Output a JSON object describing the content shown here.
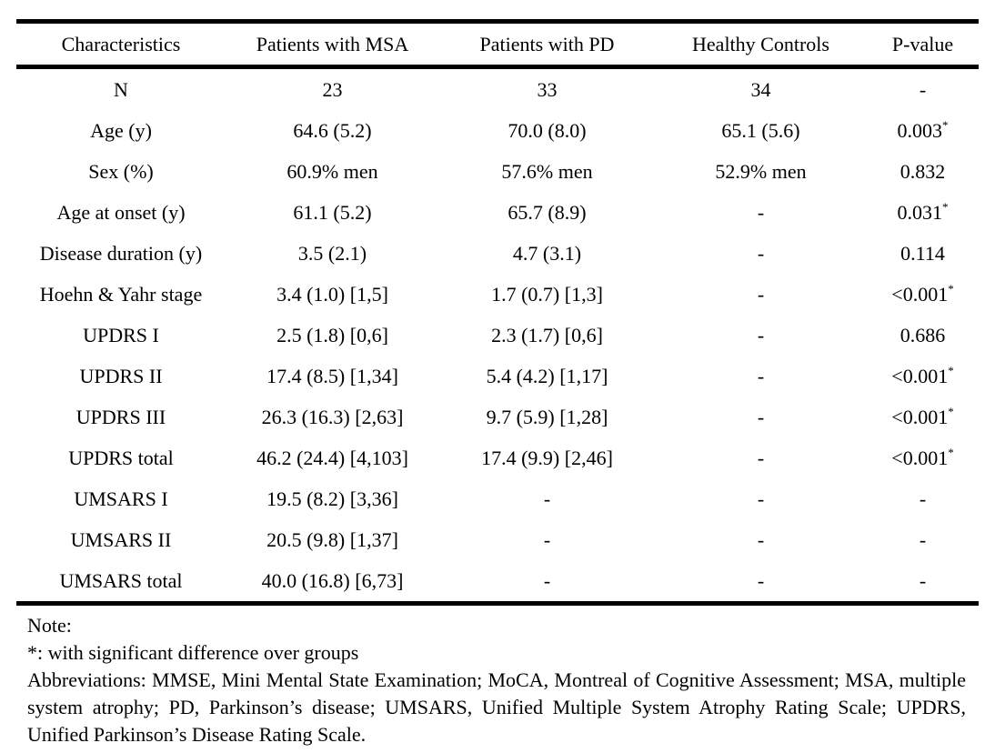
{
  "table": {
    "headers": [
      "Characteristics",
      "Patients with MSA",
      "Patients with PD",
      "Healthy Controls",
      "P-value"
    ],
    "rows": [
      {
        "label": "N",
        "msa": "23",
        "pd": "33",
        "hc": "34",
        "p": "-",
        "sig": ""
      },
      {
        "label": "Age (y)",
        "msa": "64.6 (5.2)",
        "pd": "70.0 (8.0)",
        "hc": "65.1 (5.6)",
        "p": "0.003",
        "sig": "*"
      },
      {
        "label": "Sex (%)",
        "msa": "60.9% men",
        "pd": "57.6% men",
        "hc": "52.9% men",
        "p": "0.832",
        "sig": ""
      },
      {
        "label": "Age at onset (y)",
        "msa": "61.1 (5.2)",
        "pd": "65.7 (8.9)",
        "hc": "-",
        "p": "0.031",
        "sig": "*"
      },
      {
        "label": "Disease duration (y)",
        "msa": "3.5 (2.1)",
        "pd": "4.7 (3.1)",
        "hc": "-",
        "p": "0.114",
        "sig": ""
      },
      {
        "label": "Hoehn & Yahr stage",
        "msa": "3.4 (1.0) [1,5]",
        "pd": "1.7 (0.7) [1,3]",
        "hc": "-",
        "p": "<0.001",
        "sig": "*"
      },
      {
        "label": "UPDRS I",
        "msa": "2.5 (1.8) [0,6]",
        "pd": "2.3 (1.7) [0,6]",
        "hc": "-",
        "p": "0.686",
        "sig": ""
      },
      {
        "label": "UPDRS II",
        "msa": "17.4 (8.5) [1,34]",
        "pd": "5.4 (4.2) [1,17]",
        "hc": "-",
        "p": "<0.001",
        "sig": "*"
      },
      {
        "label": "UPDRS III",
        "msa": "26.3 (16.3) [2,63]",
        "pd": "9.7 (5.9) [1,28]",
        "hc": "-",
        "p": "<0.001",
        "sig": "*"
      },
      {
        "label": "UPDRS total",
        "msa": "46.2 (24.4) [4,103]",
        "pd": "17.4 (9.9) [2,46]",
        "hc": "-",
        "p": "<0.001",
        "sig": "*"
      },
      {
        "label": "UMSARS I",
        "msa": "19.5 (8.2) [3,36]",
        "pd": "-",
        "hc": "-",
        "p": "-",
        "sig": ""
      },
      {
        "label": "UMSARS II",
        "msa": "20.5 (9.8) [1,37]",
        "pd": "-",
        "hc": "-",
        "p": "-",
        "sig": ""
      },
      {
        "label": "UMSARS total",
        "msa": "40.0 (16.8) [6,73]",
        "pd": "-",
        "hc": "-",
        "p": "-",
        "sig": ""
      }
    ]
  },
  "notes": {
    "heading": "Note:",
    "significance": "*: with significant difference over groups",
    "abbreviations": "Abbreviations: MMSE, Mini Mental State Examination; MoCA, Montreal of Cognitive Assessment; MSA, multiple system atrophy; PD, Parkinson’s disease; UMSARS, Unified Multiple System Atrophy Rating Scale; UPDRS, Unified Parkinson’s Disease Rating Scale."
  }
}
